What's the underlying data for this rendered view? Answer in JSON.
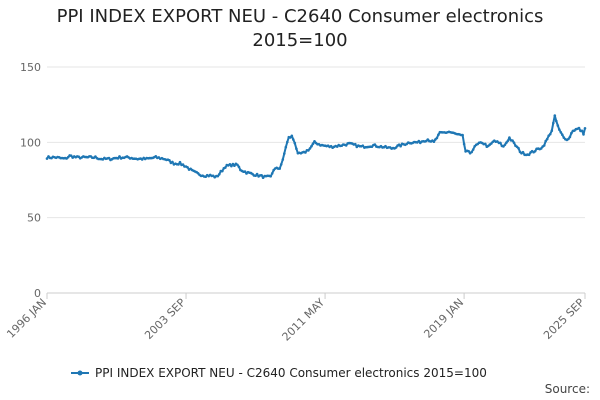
{
  "chart_data": {
    "type": "line",
    "title": "PPI INDEX EXPORT NEU - C2640 Consumer electronics",
    "subtitle": "2015=100",
    "xlabel": "",
    "ylabel": "",
    "ylim": [
      0,
      150
    ],
    "yticks": [
      0,
      50,
      100,
      150
    ],
    "x_ticks": [
      "1996 JAN",
      "2003 SEP",
      "2011 MAY",
      "2019 JAN",
      "2025 SEP"
    ],
    "x_tick_index": [
      0,
      92,
      184,
      276,
      356
    ],
    "grid": true,
    "legend_position": "bottom",
    "source_label": "Source:",
    "colors": {
      "series": "#1f77b4",
      "grid": "#e6e6e6",
      "axis": "#cccccc"
    },
    "series": [
      {
        "name": "PPI INDEX EXPORT NEU - C2640 Consumer electronics 2015=100",
        "anchors": [
          [
            0,
            90
          ],
          [
            6,
            90
          ],
          [
            12,
            89
          ],
          [
            15,
            91
          ],
          [
            20,
            90
          ],
          [
            26,
            90
          ],
          [
            32,
            90
          ],
          [
            36,
            89
          ],
          [
            42,
            89
          ],
          [
            48,
            90
          ],
          [
            54,
            90
          ],
          [
            60,
            89
          ],
          [
            66,
            89
          ],
          [
            72,
            90
          ],
          [
            78,
            89
          ],
          [
            84,
            86
          ],
          [
            88,
            86
          ],
          [
            92,
            84
          ],
          [
            96,
            81
          ],
          [
            100,
            79
          ],
          [
            104,
            78
          ],
          [
            108,
            78
          ],
          [
            112,
            77
          ],
          [
            114,
            79
          ],
          [
            118,
            84
          ],
          [
            122,
            85
          ],
          [
            126,
            85
          ],
          [
            128,
            82
          ],
          [
            132,
            80
          ],
          [
            136,
            79
          ],
          [
            140,
            78
          ],
          [
            144,
            77
          ],
          [
            148,
            77
          ],
          [
            150,
            82
          ],
          [
            154,
            83
          ],
          [
            156,
            88
          ],
          [
            158,
            97
          ],
          [
            160,
            103
          ],
          [
            162,
            104
          ],
          [
            164,
            100
          ],
          [
            166,
            92
          ],
          [
            170,
            93
          ],
          [
            174,
            96
          ],
          [
            177,
            100
          ],
          [
            182,
            98
          ],
          [
            188,
            97
          ],
          [
            194,
            98
          ],
          [
            200,
            99
          ],
          [
            208,
            97
          ],
          [
            216,
            98
          ],
          [
            222,
            97
          ],
          [
            228,
            96
          ],
          [
            234,
            98
          ],
          [
            240,
            100
          ],
          [
            246,
            100
          ],
          [
            252,
            102
          ],
          [
            256,
            100
          ],
          [
            260,
            106
          ],
          [
            266,
            107
          ],
          [
            272,
            105
          ],
          [
            275,
            104
          ],
          [
            277,
            94
          ],
          [
            280,
            93
          ],
          [
            284,
            98
          ],
          [
            288,
            100
          ],
          [
            292,
            97
          ],
          [
            296,
            101
          ],
          [
            300,
            99
          ],
          [
            302,
            97
          ],
          [
            306,
            103
          ],
          [
            310,
            98
          ],
          [
            314,
            93
          ],
          [
            318,
            92
          ],
          [
            322,
            94
          ],
          [
            326,
            96
          ],
          [
            328,
            97
          ],
          [
            331,
            102
          ],
          [
            334,
            108
          ],
          [
            336,
            117
          ],
          [
            339,
            108
          ],
          [
            342,
            103
          ],
          [
            345,
            102
          ],
          [
            348,
            108
          ],
          [
            352,
            109
          ],
          [
            355,
            106
          ],
          [
            357,
            112
          ],
          [
            359,
            105
          ],
          [
            362,
            103
          ],
          [
            365,
            103
          ]
        ]
      }
    ]
  }
}
